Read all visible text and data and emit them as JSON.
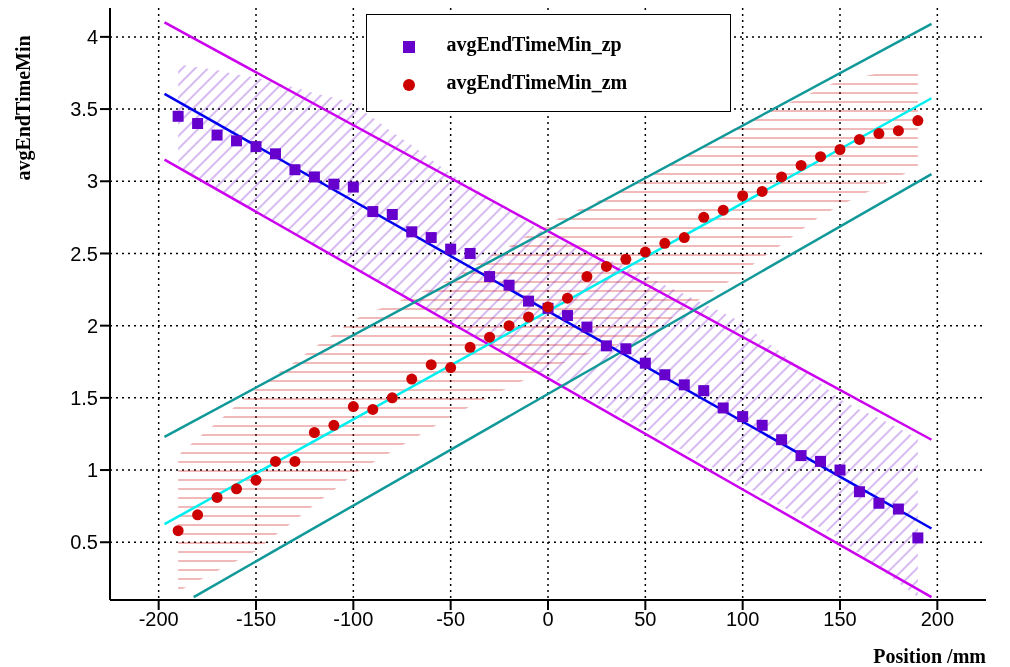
{
  "chart_data": {
    "type": "scatter",
    "xlabel": "Position /mm",
    "ylabel": "avgEndTimeMin",
    "xlim": [
      -225,
      225
    ],
    "ylim": [
      0.1,
      4.2
    ],
    "xticks": [
      -200,
      -150,
      -100,
      -50,
      0,
      50,
      100,
      150,
      200
    ],
    "yticks": [
      0.5,
      1,
      1.5,
      2,
      2.5,
      3,
      3.5,
      4
    ],
    "grid": true,
    "legend": "top",
    "series": [
      {
        "type": "line",
        "color": "#cc00ee",
        "line_style": "solid",
        "x": [
          -197,
          197
        ],
        "values": [
          4.1,
          1.21
        ]
      },
      {
        "type": "line",
        "color": "#cc00ee",
        "line_style": "solid",
        "x": [
          -197,
          197
        ],
        "values": [
          3.15,
          0.12
        ]
      },
      {
        "type": "line",
        "color": "#119999",
        "line_style": "solid",
        "x": [
          -197,
          197
        ],
        "values": [
          1.23,
          4.09
        ]
      },
      {
        "type": "line",
        "color": "#119999",
        "line_style": "solid",
        "x": [
          -182,
          197
        ],
        "values": [
          0.12,
          3.05
        ]
      },
      {
        "type": "line",
        "color": "#0000ee",
        "line_style": "solid",
        "x": [
          -197,
          197
        ],
        "values": [
          3.605,
          0.595
        ]
      },
      {
        "type": "line",
        "color": "#00eeee",
        "line_style": "solid",
        "x": [
          -197,
          197
        ],
        "values": [
          0.625,
          3.575
        ]
      },
      {
        "name": "avgEndTimeMin_zp",
        "color": "#6600cc",
        "marker": "square",
        "x": [
          -190,
          -180,
          -170,
          -160,
          -150,
          -140,
          -130,
          -120,
          -110,
          -100,
          -90,
          -80,
          -70,
          -60,
          -50,
          -40,
          -30,
          -20,
          -10,
          0,
          10,
          20,
          30,
          40,
          50,
          60,
          70,
          80,
          90,
          100,
          110,
          120,
          130,
          140,
          150,
          160,
          170,
          180,
          190
        ],
        "values": [
          3.45,
          3.4,
          3.32,
          3.28,
          3.24,
          3.19,
          3.08,
          3.03,
          2.98,
          2.96,
          2.79,
          2.77,
          2.65,
          2.61,
          2.53,
          2.5,
          2.34,
          2.28,
          2.17,
          2.12,
          2.07,
          1.99,
          1.86,
          1.84,
          1.74,
          1.66,
          1.59,
          1.55,
          1.43,
          1.37,
          1.31,
          1.21,
          1.1,
          1.06,
          1.0,
          0.85,
          0.77,
          0.73,
          0.53
        ],
        "lower": [
          3.1,
          3.02,
          2.95,
          2.87,
          2.8,
          2.72,
          2.64,
          2.56,
          2.48,
          2.4,
          2.32,
          2.25,
          2.17,
          2.1,
          2.02,
          1.95,
          1.87,
          1.8,
          1.72,
          1.65,
          1.58,
          1.5,
          1.43,
          1.35,
          1.28,
          1.2,
          1.13,
          1.05,
          0.98,
          0.9,
          0.82,
          0.75,
          0.67,
          0.6,
          0.52,
          0.42,
          0.32,
          0.22,
          0.12
        ],
        "upper": [
          3.81,
          3.79,
          3.77,
          3.74,
          3.72,
          3.68,
          3.65,
          3.61,
          3.58,
          3.54,
          3.44,
          3.34,
          3.25,
          3.15,
          3.05,
          2.97,
          2.88,
          2.8,
          2.71,
          2.63,
          2.57,
          2.52,
          2.46,
          2.41,
          2.35,
          2.28,
          2.22,
          2.15,
          2.09,
          2.02,
          1.91,
          1.81,
          1.7,
          1.6,
          1.49,
          1.42,
          1.36,
          1.29,
          1.22
        ]
      },
      {
        "name": "avgEndTimeMin_zm",
        "color": "#cc0000",
        "marker": "circle",
        "x": [
          -190,
          -180,
          -170,
          -160,
          -150,
          -140,
          -130,
          -120,
          -110,
          -100,
          -90,
          -80,
          -70,
          -60,
          -50,
          -40,
          -30,
          -20,
          -10,
          0,
          10,
          20,
          30,
          40,
          50,
          60,
          70,
          80,
          90,
          100,
          110,
          120,
          130,
          140,
          150,
          160,
          170,
          180,
          190
        ],
        "values": [
          0.58,
          0.69,
          0.81,
          0.87,
          0.93,
          1.06,
          1.06,
          1.26,
          1.31,
          1.44,
          1.42,
          1.5,
          1.63,
          1.73,
          1.71,
          1.85,
          1.92,
          2.0,
          2.06,
          2.13,
          2.19,
          2.34,
          2.41,
          2.46,
          2.51,
          2.57,
          2.61,
          2.75,
          2.8,
          2.9,
          2.93,
          3.03,
          3.11,
          3.17,
          3.22,
          3.29,
          3.33,
          3.35,
          3.42
        ],
        "lower": [
          0.16,
          0.23,
          0.3,
          0.37,
          0.44,
          0.55,
          0.65,
          0.76,
          0.86,
          0.97,
          1.05,
          1.13,
          1.21,
          1.29,
          1.37,
          1.44,
          1.51,
          1.57,
          1.64,
          1.71,
          1.75,
          1.8,
          1.84,
          1.89,
          1.93,
          2.02,
          2.11,
          2.2,
          2.28,
          2.37,
          2.47,
          2.56,
          2.66,
          2.76,
          2.83,
          2.9,
          2.96,
          3.03,
          3.1
        ],
        "upper": [
          1.1,
          1.22,
          1.33,
          1.45,
          1.56,
          1.66,
          1.75,
          1.85,
          1.94,
          2.04,
          2.1,
          2.15,
          2.21,
          2.26,
          2.32,
          2.4,
          2.48,
          2.55,
          2.63,
          2.71,
          2.77,
          2.83,
          2.89,
          2.95,
          3.01,
          3.09,
          3.17,
          3.24,
          3.32,
          3.4,
          3.46,
          3.52,
          3.58,
          3.64,
          3.7,
          3.72,
          3.75,
          3.77,
          3.79
        ]
      }
    ]
  }
}
